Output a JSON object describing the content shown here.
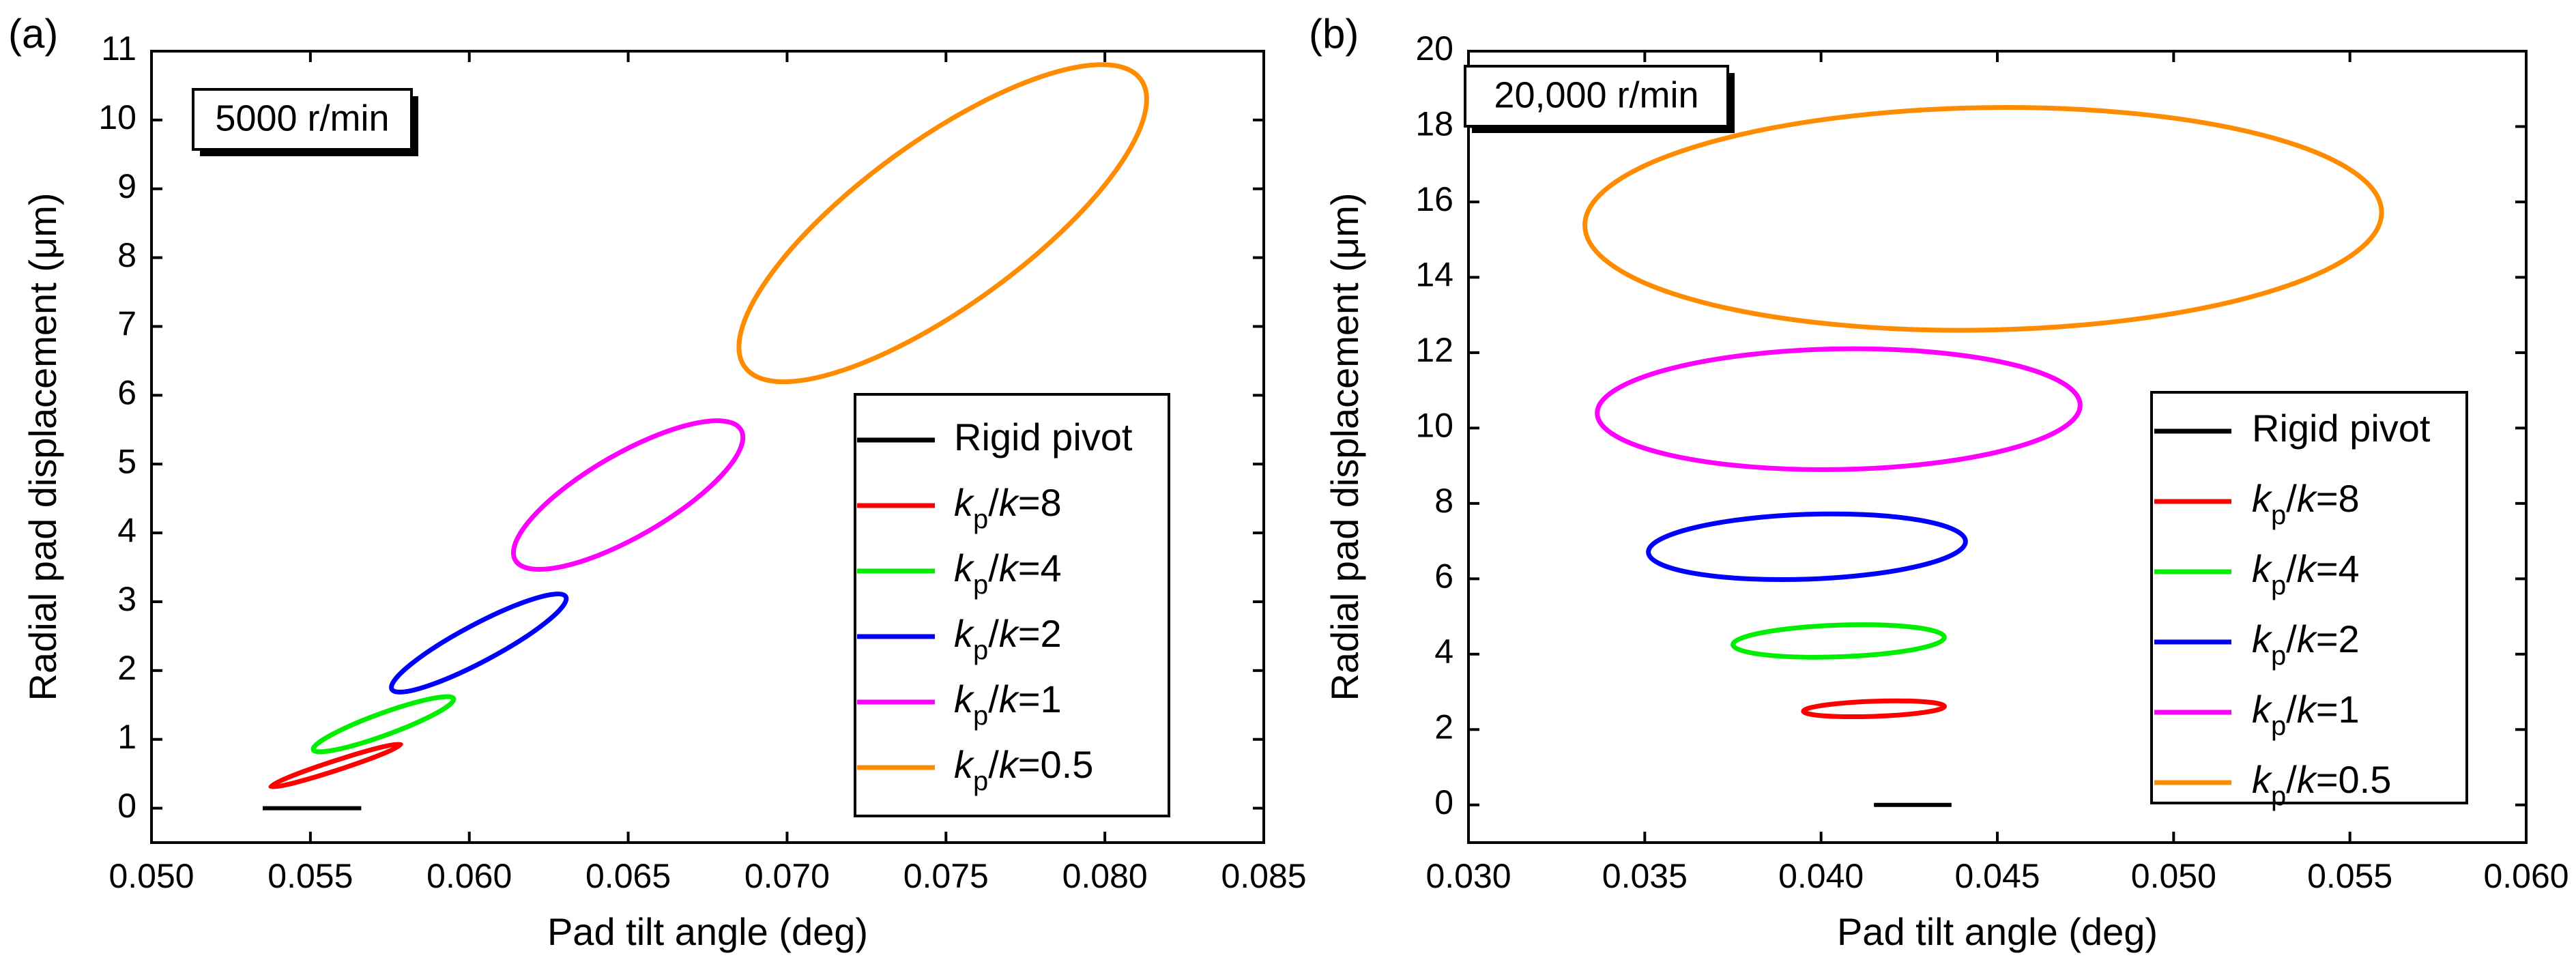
{
  "figure": {
    "panels": [
      {
        "panel_label": "(a)",
        "speed_label": "5000 r/min"
      },
      {
        "panel_label": "(b)",
        "speed_label": "20,000 r/min"
      }
    ]
  },
  "chart_data": [
    {
      "type": "line",
      "title": "",
      "panel": "(a)",
      "annotation": "5000 r/min",
      "xlabel": "Pad tilt angle (deg)",
      "ylabel": "Radial pad displacement (μm)",
      "xlim": [
        0.05,
        0.085
      ],
      "ylim": [
        -0.5,
        11
      ],
      "xticks": [
        0.05,
        0.055,
        0.06,
        0.065,
        0.07,
        0.075,
        0.08,
        0.085
      ],
      "xtick_labels": [
        "0.050",
        "0.055",
        "0.060",
        "0.065",
        "0.070",
        "0.075",
        "0.080",
        "0.085"
      ],
      "yticks": [
        0,
        1,
        2,
        3,
        4,
        5,
        6,
        7,
        8,
        9,
        10,
        11
      ],
      "ytick_labels": [
        "0",
        "1",
        "2",
        "3",
        "4",
        "5",
        "6",
        "7",
        "8",
        "9",
        "10",
        "11"
      ],
      "grid": false,
      "legend_position": "lower-right",
      "series": [
        {
          "name": "Rigid pivot",
          "kind": "segment",
          "color": "#000000",
          "x_range": [
            0.0535,
            0.0566
          ],
          "y": 0.0
        },
        {
          "name": "kp/k=8",
          "kind": "ellipse",
          "color": "#ff0000",
          "cx": 0.0558,
          "cy": 0.62,
          "rx": 0.00215,
          "ry": 0.07,
          "tilt_deg": -18
        },
        {
          "name": "kp/k=4",
          "kind": "ellipse",
          "color": "#00ee00",
          "cx": 0.0573,
          "cy": 1.22,
          "rx": 0.00235,
          "ry": 0.16,
          "tilt_deg": -20
        },
        {
          "name": "kp/k=2",
          "kind": "ellipse",
          "color": "#0000ff",
          "cx": 0.0603,
          "cy": 2.4,
          "rx": 0.0031,
          "ry": 0.27,
          "tilt_deg": -28
        },
        {
          "name": "kp/k=1",
          "kind": "ellipse",
          "color": "#ff00ff",
          "cx": 0.065,
          "cy": 4.55,
          "rx": 0.0041,
          "ry": 0.6,
          "tilt_deg": -30
        },
        {
          "name": "kp/k=0.5",
          "kind": "ellipse",
          "color": "#ff8c00",
          "cx": 0.0749,
          "cy": 8.5,
          "rx": 0.0077,
          "ry": 1.2,
          "tilt_deg": -36
        }
      ]
    },
    {
      "type": "line",
      "title": "",
      "panel": "(b)",
      "annotation": "20,000 r/min",
      "xlabel": "Pad tilt angle (deg)",
      "ylabel": "Radial pad displacement (μm)",
      "xlim": [
        0.03,
        0.06
      ],
      "ylim": [
        -1,
        20
      ],
      "xticks": [
        0.03,
        0.035,
        0.04,
        0.045,
        0.05,
        0.055,
        0.06
      ],
      "xtick_labels": [
        "0.030",
        "0.035",
        "0.040",
        "0.045",
        "0.050",
        "0.055",
        "0.060"
      ],
      "yticks": [
        0,
        2,
        4,
        6,
        8,
        10,
        12,
        14,
        16,
        18,
        20
      ],
      "ytick_labels": [
        "0",
        "2",
        "4",
        "6",
        "8",
        "10",
        "12",
        "14",
        "16",
        "18",
        "20"
      ],
      "grid": false,
      "legend_position": "lower-right",
      "series": [
        {
          "name": "Rigid pivot",
          "kind": "segment",
          "color": "#000000",
          "x_range": [
            0.0415,
            0.0437
          ],
          "y": 0.0
        },
        {
          "name": "kp/k=8",
          "kind": "ellipse",
          "color": "#ff0000",
          "cx": 0.0415,
          "cy": 2.55,
          "rx": 0.002,
          "ry": 0.2,
          "tilt_deg": -2
        },
        {
          "name": "kp/k=4",
          "kind": "ellipse",
          "color": "#00ee00",
          "cx": 0.0405,
          "cy": 4.35,
          "rx": 0.003,
          "ry": 0.42,
          "tilt_deg": -2
        },
        {
          "name": "kp/k=2",
          "kind": "ellipse",
          "color": "#0000ff",
          "cx": 0.0396,
          "cy": 6.85,
          "rx": 0.0045,
          "ry": 0.86,
          "tilt_deg": -2
        },
        {
          "name": "kp/k=1",
          "kind": "ellipse",
          "color": "#ff00ff",
          "cx": 0.0405,
          "cy": 10.5,
          "rx": 0.00685,
          "ry": 1.6,
          "tilt_deg": -1
        },
        {
          "name": "kp/k=0.5",
          "kind": "ellipse",
          "color": "#ff8c00",
          "cx": 0.0446,
          "cy": 15.55,
          "rx": 0.0113,
          "ry": 2.95,
          "tilt_deg": -1
        }
      ]
    }
  ]
}
